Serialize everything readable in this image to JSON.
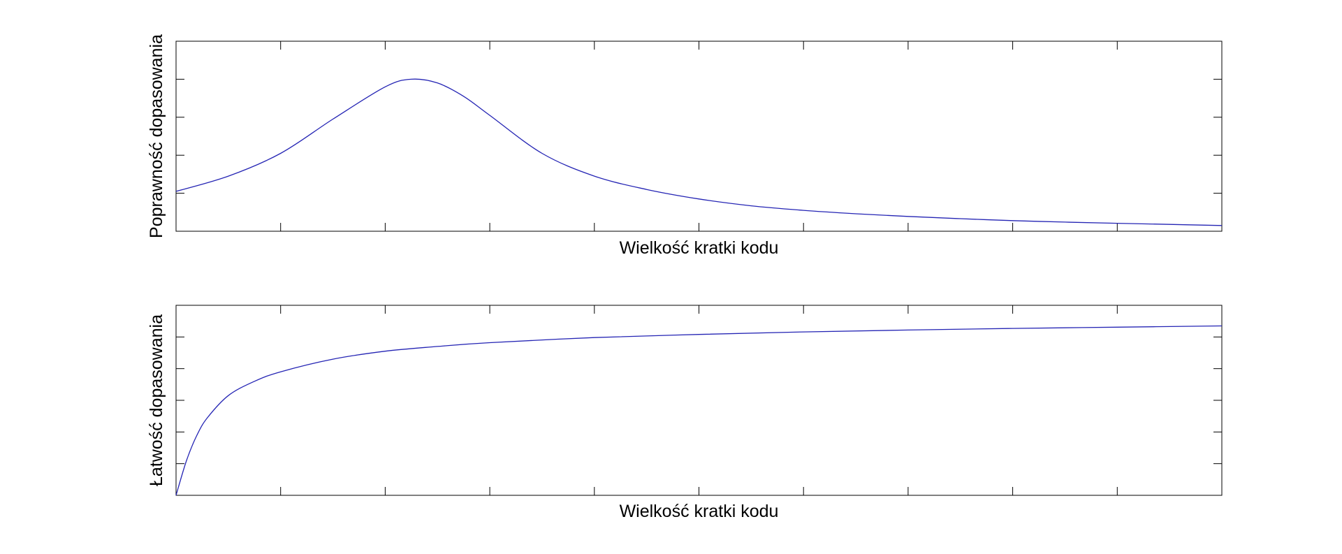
{
  "chart_data": [
    {
      "type": "line",
      "xlabel": "Wielkość kratki kodu",
      "ylabel": "Poprawność dopasowania",
      "xlim": [
        0,
        10
      ],
      "ylim": [
        0,
        5
      ],
      "xticks": 10,
      "yticks": 5,
      "tick_labels_shown": false,
      "grid": false,
      "color": "#2424b4",
      "series": [
        {
          "x": [
            0,
            0.5,
            1,
            1.5,
            2,
            2.25,
            2.5,
            2.75,
            3,
            3.5,
            4,
            4.5,
            5,
            5.5,
            6,
            6.5,
            7,
            7.5,
            8,
            8.5,
            9,
            9.5,
            10
          ],
          "values": [
            1.05,
            1.45,
            2.05,
            2.95,
            3.8,
            4.0,
            3.9,
            3.55,
            3.05,
            2.05,
            1.45,
            1.1,
            0.85,
            0.67,
            0.55,
            0.46,
            0.39,
            0.33,
            0.28,
            0.24,
            0.21,
            0.18,
            0.15
          ]
        }
      ]
    },
    {
      "type": "line",
      "xlabel": "Wielkość kratki kodu",
      "ylabel": "Łatwość dopasowania",
      "xlim": [
        0,
        10
      ],
      "ylim": [
        0,
        6
      ],
      "xticks": 10,
      "yticks": 6,
      "tick_labels_shown": false,
      "grid": false,
      "color": "#2424b4",
      "series": [
        {
          "x": [
            0,
            0.1,
            0.2,
            0.3,
            0.5,
            0.75,
            1,
            1.5,
            2,
            2.5,
            3,
            4,
            5,
            6,
            7,
            8,
            9,
            10
          ],
          "values": [
            0,
            1.1,
            1.9,
            2.45,
            3.15,
            3.6,
            3.9,
            4.3,
            4.55,
            4.7,
            4.82,
            4.98,
            5.08,
            5.16,
            5.22,
            5.27,
            5.31,
            5.35
          ]
        }
      ]
    }
  ]
}
